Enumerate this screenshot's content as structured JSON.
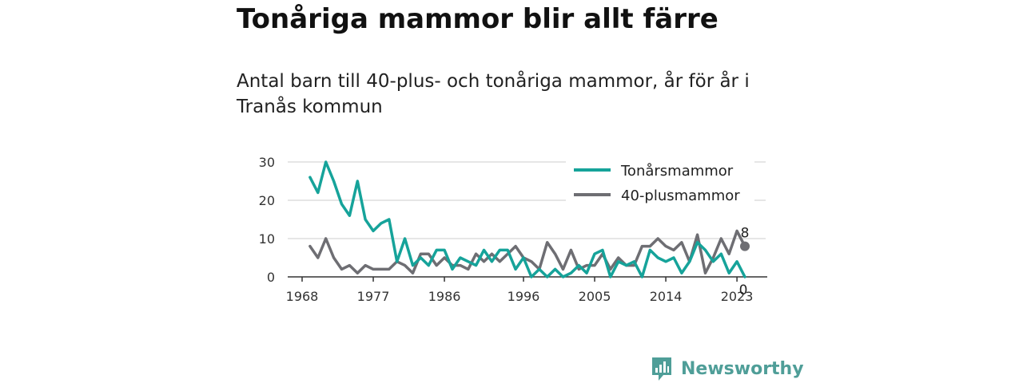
{
  "title": "Tonåriga mammor blir allt färre",
  "subtitle": "Antal barn till 40-plus- och tonåriga mammor, år för år i Tranås kommun",
  "brand": {
    "name": "Newsworthy",
    "color": "#4f9e98",
    "icon": "bar-chart-speech-bubble-icon"
  },
  "chart_data": {
    "type": "line",
    "xlabel": "",
    "ylabel": "",
    "xlim": [
      1968,
      2024
    ],
    "ylim": [
      0,
      30
    ],
    "grid": true,
    "legend_position": "top-right",
    "x_ticks": [
      1968,
      1977,
      1986,
      1996,
      2005,
      2014,
      2023
    ],
    "y_ticks": [
      0,
      10,
      20,
      30
    ],
    "x": [
      1969,
      1970,
      1971,
      1972,
      1973,
      1974,
      1975,
      1976,
      1977,
      1978,
      1979,
      1980,
      1981,
      1982,
      1983,
      1984,
      1985,
      1986,
      1987,
      1988,
      1989,
      1990,
      1991,
      1992,
      1993,
      1994,
      1995,
      1996,
      1997,
      1998,
      1999,
      2000,
      2001,
      2002,
      2003,
      2004,
      2005,
      2006,
      2007,
      2008,
      2009,
      2010,
      2011,
      2012,
      2013,
      2014,
      2015,
      2016,
      2017,
      2018,
      2019,
      2020,
      2021,
      2022,
      2023,
      2024
    ],
    "series": [
      {
        "name": "Tonårsmammor",
        "color": "#16a39a",
        "values": [
          26,
          22,
          30,
          25,
          19,
          16,
          25,
          15,
          12,
          14,
          15,
          4,
          10,
          3,
          5,
          3,
          7,
          7,
          2,
          5,
          4,
          3,
          7,
          4,
          7,
          7,
          2,
          5,
          0,
          2,
          0,
          2,
          0,
          1,
          3,
          1,
          6,
          7,
          0,
          4,
          3,
          4,
          0,
          7,
          5,
          4,
          5,
          1,
          4,
          9,
          7,
          4,
          6,
          1,
          4,
          0
        ],
        "end_label": "0"
      },
      {
        "name": "40-plusmammor",
        "color": "#6e6e73",
        "values": [
          8,
          5,
          10,
          5,
          2,
          3,
          1,
          3,
          2,
          2,
          2,
          4,
          3,
          1,
          6,
          6,
          3,
          5,
          3,
          3,
          2,
          6,
          4,
          6,
          4,
          6,
          8,
          5,
          4,
          2,
          9,
          6,
          2,
          7,
          2,
          3,
          3,
          6,
          2,
          5,
          3,
          3,
          8,
          8,
          10,
          8,
          7,
          9,
          4,
          11,
          1,
          5,
          10,
          6,
          12,
          8
        ],
        "end_label": "8"
      }
    ]
  }
}
